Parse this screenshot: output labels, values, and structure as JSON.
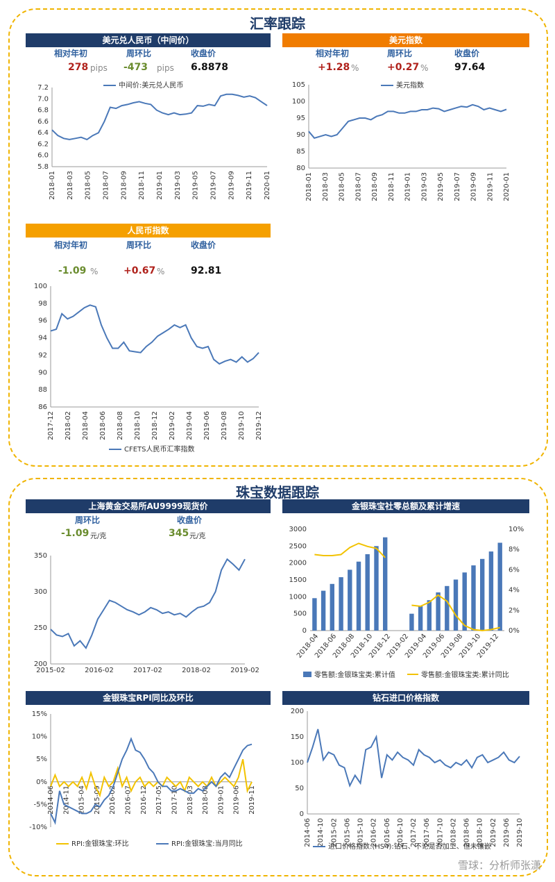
{
  "sections": {
    "fx_title": "汇率跟踪",
    "jewelry_title": "珠宝数据跟踪"
  },
  "usdcny": {
    "header": "美元兑人民币（中间价）",
    "labels": [
      "相对年初",
      "周环比",
      "收盘价"
    ],
    "ytd": "278",
    "ytd_unit": "pips",
    "wow": "-473",
    "wow_unit": "pips",
    "close": "6.8878"
  },
  "dxy": {
    "header": "美元指数",
    "labels": [
      "相对年初",
      "周环比",
      "收盘价"
    ],
    "ytd": "+1.28",
    "ytd_unit": "%",
    "wow": "+0.27",
    "wow_unit": "%",
    "close": "97.64"
  },
  "cfets": {
    "header": "人民币指数",
    "labels": [
      "相对年初",
      "周环比",
      "收盘价"
    ],
    "ytd": "-1.09",
    "ytd_unit": "%",
    "wow": "+0.67",
    "wow_unit": "%",
    "close": "92.81"
  },
  "gold": {
    "header": "上海黄金交易所AU9999现货价",
    "labels": [
      "周环比",
      "收盘价"
    ],
    "wow": "-1.09",
    "wow_unit": "元/克",
    "close": "345",
    "close_unit": "元/克"
  },
  "retail_header": "金银珠宝社零总额及累计增速",
  "rpi_header": "金银珠宝RPI同比及环比",
  "diamond_header": "钻石进口价格指数",
  "watermark": "雪球：分析师张潇",
  "colors": {
    "navy": "#1f3c69",
    "orange": "#f07c00",
    "amber": "#f5a000",
    "line": "#4a78b8",
    "yellow": "#f2c200",
    "red": "#b0221c",
    "green": "#6a8c2e"
  },
  "chart_data": [
    {
      "id": "usdcny",
      "type": "line",
      "legend": "中间价:美元兑人民币",
      "legend_position": "top",
      "ylim": [
        5.8,
        7.2
      ],
      "yticks": [
        "7.2",
        "7.0",
        "6.8",
        "6.6",
        "6.4",
        "6.2",
        "6.0",
        "5.8"
      ],
      "xticks": [
        "2018-01",
        "2018-03",
        "2018-05",
        "2018-07",
        "2018-09",
        "2018-11",
        "2019-01",
        "2019-03",
        "2019-05",
        "2019-07",
        "2019-09",
        "2019-11",
        "2020-01"
      ],
      "values": [
        6.45,
        6.35,
        6.3,
        6.28,
        6.3,
        6.32,
        6.28,
        6.35,
        6.4,
        6.6,
        6.85,
        6.83,
        6.88,
        6.9,
        6.93,
        6.95,
        6.92,
        6.9,
        6.8,
        6.75,
        6.72,
        6.75,
        6.72,
        6.73,
        6.75,
        6.88,
        6.87,
        6.9,
        6.88,
        7.05,
        7.08,
        7.08,
        7.06,
        7.03,
        7.05,
        7.02,
        6.95,
        6.88
      ]
    },
    {
      "id": "dxy",
      "type": "line",
      "legend": "美元指数",
      "legend_position": "top",
      "ylim": [
        80,
        105
      ],
      "yticks": [
        "105",
        "100",
        "95",
        "90",
        "85",
        "80"
      ],
      "xticks": [
        "2018-01",
        "2018-03",
        "2018-05",
        "2018-07",
        "2018-09",
        "2018-11",
        "2019-01",
        "2019-03",
        "2019-05",
        "2019-07",
        "2019-09",
        "2019-11",
        "2020-01"
      ],
      "values": [
        91,
        89,
        89.5,
        90,
        89.5,
        90,
        92,
        94,
        94.5,
        95,
        95,
        94.5,
        95.5,
        96,
        97,
        97,
        96.5,
        96.5,
        97,
        97,
        97.5,
        97.5,
        98,
        97.8,
        97,
        97.5,
        98,
        98.5,
        98.3,
        99,
        98.5,
        97.5,
        98,
        97.5,
        97,
        97.6
      ]
    },
    {
      "id": "cfets",
      "type": "line",
      "legend": "CFETS人民币汇率指数",
      "legend_position": "bottom",
      "ylim": [
        86,
        100
      ],
      "yticks": [
        "100",
        "98",
        "96",
        "94",
        "92",
        "90",
        "88",
        "86"
      ],
      "xticks": [
        "2017-12",
        "2018-02",
        "2018-04",
        "2018-06",
        "2018-08",
        "2018-10",
        "2018-12",
        "2019-02",
        "2019-04",
        "2019-06",
        "2019-08",
        "2019-10",
        "2019-12"
      ],
      "values": [
        94.8,
        95,
        96.8,
        96.2,
        96.5,
        97,
        97.5,
        97.8,
        97.6,
        95.5,
        94,
        92.8,
        92.8,
        93.5,
        92.5,
        92.4,
        92.3,
        93,
        93.5,
        94.2,
        94.6,
        95,
        95.5,
        95.2,
        95.5,
        94,
        93,
        92.8,
        93,
        91.5,
        91,
        91.3,
        91.5,
        91.2,
        91.8,
        91.2,
        91.6,
        92.3
      ]
    },
    {
      "id": "gold",
      "type": "line",
      "ylim": [
        200,
        350
      ],
      "yticks": [
        "350",
        "300",
        "250",
        "200"
      ],
      "xticks": [
        "2015-02",
        "2016-02",
        "2017-02",
        "2018-02",
        "2019-02"
      ],
      "values": [
        248,
        240,
        238,
        242,
        225,
        232,
        222,
        240,
        262,
        275,
        288,
        285,
        280,
        275,
        272,
        268,
        272,
        278,
        275,
        270,
        272,
        268,
        270,
        265,
        272,
        278,
        280,
        285,
        300,
        330,
        345,
        338,
        330,
        345
      ]
    },
    {
      "id": "retail",
      "type": "bar",
      "series": [
        {
          "name": "零售额:金银珠宝类:累计值",
          "type": "bar",
          "axis": "left",
          "values": [
            960,
            1180,
            1380,
            1580,
            1800,
            2040,
            2260,
            2500,
            2760,
            null,
            null,
            500,
            720,
            900,
            1130,
            1320,
            1510,
            1720,
            1930,
            2120,
            2340,
            2600
          ]
        },
        {
          "name": "零售额:金银珠宝类:累计同比",
          "type": "line",
          "axis": "right",
          "values": [
            7.5,
            7.4,
            7.4,
            7.5,
            8.2,
            8.6,
            8.3,
            8.1,
            7.2,
            null,
            null,
            2.5,
            2.4,
            2.8,
            3.5,
            2.9,
            1.5,
            0.5,
            0.1,
            0,
            0.1,
            0.3
          ]
        }
      ],
      "ylim_left": [
        0,
        3000
      ],
      "ylim_right": [
        0,
        10
      ],
      "yticks_left": [
        "3000",
        "2500",
        "2000",
        "1500",
        "1000",
        "500",
        "0"
      ],
      "yticks_right": [
        "10%",
        "8%",
        "6%",
        "4%",
        "2%",
        "0%"
      ],
      "xticks": [
        "2018-04",
        "2018-06",
        "2018-08",
        "2018-10",
        "2018-12",
        "2019-02",
        "2019-04",
        "2019-06",
        "2019-08",
        "2019-10",
        "2019-12"
      ],
      "legend_position": "bottom"
    },
    {
      "id": "rpi",
      "type": "line",
      "series": [
        {
          "name": "RPI:金银珠宝:环比",
          "values": [
            -1,
            1.5,
            -1,
            0,
            -1,
            0,
            -1,
            1,
            -1.5,
            2,
            -1,
            -3,
            1,
            -1,
            0,
            3,
            -1,
            1,
            -2,
            0,
            1,
            -1,
            0,
            -1,
            0,
            -1,
            1,
            0,
            -1,
            0,
            -2,
            1,
            0,
            -1,
            0,
            -1,
            1,
            -1,
            0,
            1,
            0,
            -1,
            1,
            5,
            -2,
            0
          ]
        },
        {
          "name": "RPI:金银珠宝:当月同比",
          "values": [
            -7,
            -9,
            -2,
            -5,
            -5.5,
            -6,
            -6.5,
            -7,
            -7,
            -6.5,
            -5,
            -5.5,
            -4,
            -3,
            -1,
            2,
            5,
            7,
            9.5,
            7,
            6.5,
            5,
            3,
            2,
            0,
            -1,
            -1,
            -2,
            -2,
            -1.5,
            -2,
            -2.5,
            -2.5,
            -1.5,
            -2,
            -1,
            0,
            -1,
            1,
            2,
            1,
            3,
            5,
            7,
            8,
            8.3
          ]
        }
      ],
      "ylim": [
        -10,
        15
      ],
      "yticks": [
        "15%",
        "10%",
        "5%",
        "0%",
        "-5%",
        "-10%"
      ],
      "xticks": [
        "2014-06",
        "2014-11",
        "2015-04",
        "2015-09",
        "2016-02",
        "2016-07",
        "2016-12",
        "2017-05",
        "2017-10",
        "2018-03",
        "2018-08",
        "2019-01",
        "2019-06",
        "2019-11"
      ],
      "legend_position": "bottom"
    },
    {
      "id": "diamond",
      "type": "line",
      "legend": "进口价格指数:(HS4):钻石、不论是否加工、但未镶嵌",
      "legend_position": "bottom",
      "ylim": [
        0,
        200
      ],
      "yticks": [
        "200",
        "150",
        "100",
        "50",
        "0"
      ],
      "xticks": [
        "2014-06",
        "2014-10",
        "2015-02",
        "2015-06",
        "2015-10",
        "2016-02",
        "2016-06",
        "2016-10",
        "2017-02",
        "2017-06",
        "2017-10",
        "2018-02",
        "2018-06",
        "2018-10",
        "2019-02",
        "2019-06",
        "2019-10"
      ],
      "values": [
        100,
        130,
        165,
        105,
        120,
        115,
        95,
        90,
        55,
        75,
        60,
        125,
        130,
        150,
        70,
        115,
        105,
        120,
        110,
        105,
        95,
        125,
        115,
        110,
        100,
        105,
        95,
        90,
        100,
        95,
        105,
        90,
        110,
        115,
        100,
        105,
        110,
        120,
        105,
        100,
        112
      ]
    }
  ]
}
